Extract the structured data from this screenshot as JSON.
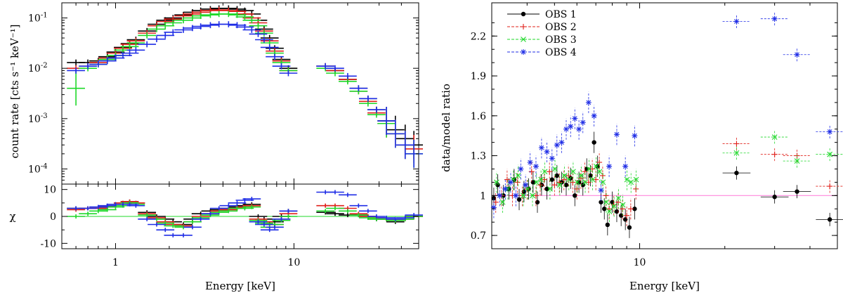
{
  "chart_data": [
    {
      "type": "scatter",
      "panel": "spectrum",
      "xlabel": "Energy [keV]",
      "ylabel": "count rate [cts s⁻¹ keV⁻¹]",
      "ylabel_lower": "χ",
      "xscale": "log",
      "yscale": "log",
      "xlim": [
        0.5,
        50
      ],
      "ylim": [
        5e-05,
        0.2
      ],
      "ylim_lower": [
        -12,
        12
      ],
      "xticks": [
        1,
        10
      ],
      "xtick_labels": [
        "1",
        "10"
      ],
      "yticks_upper": [
        0.0001,
        0.001,
        0.01,
        0.1
      ],
      "yticks_lower": [
        -10,
        0,
        10
      ],
      "ytick_labels_lower": [
        "-10",
        "0",
        "10"
      ],
      "grid": false,
      "series": [
        {
          "color": "#000000",
          "x": [
            0.6,
            0.7,
            0.8,
            0.9,
            1.0,
            1.1,
            1.2,
            1.3,
            1.5,
            1.7,
            1.9,
            2.1,
            2.4,
            2.7,
            3.0,
            3.4,
            3.8,
            4.3,
            4.8,
            5.3,
            5.8,
            6.3,
            6.8,
            7.3,
            7.8,
            8.5,
            9.3,
            15,
            17,
            20,
            23,
            26,
            29,
            33,
            37,
            42,
            47
          ],
          "y": [
            0.013,
            0.013,
            0.014,
            0.017,
            0.021,
            0.026,
            0.031,
            0.037,
            0.055,
            0.075,
            0.09,
            0.1,
            0.115,
            0.13,
            0.14,
            0.15,
            0.155,
            0.155,
            0.15,
            0.14,
            0.12,
            0.09,
            0.06,
            0.04,
            0.025,
            0.015,
            0.01,
            0.011,
            0.009,
            0.006,
            0.004,
            0.0025,
            0.0015,
            0.0009,
            0.0006,
            0.0004,
            0.0003
          ],
          "chi": [
            3,
            3,
            3,
            3.5,
            4.5,
            5,
            5.5,
            5,
            1.5,
            0,
            -1,
            -2,
            -3,
            -1,
            1,
            2,
            2.5,
            3,
            3.5,
            4,
            4.5,
            0,
            -1,
            -3,
            -2,
            0,
            2,
            1.5,
            1,
            0.5,
            0.5,
            0,
            -1,
            -1,
            -2,
            -1,
            0
          ]
        },
        {
          "color": "#e0201a",
          "x": [
            0.6,
            0.7,
            0.8,
            0.9,
            1.0,
            1.1,
            1.2,
            1.3,
            1.5,
            1.7,
            1.9,
            2.1,
            2.4,
            2.7,
            3.0,
            3.4,
            3.8,
            4.3,
            4.8,
            5.3,
            5.8,
            6.3,
            6.8,
            7.3,
            7.8,
            8.5,
            9.3,
            15,
            17,
            20,
            23,
            26,
            29,
            33,
            37,
            42,
            47
          ],
          "y": [
            0.01,
            0.011,
            0.013,
            0.016,
            0.02,
            0.025,
            0.03,
            0.035,
            0.05,
            0.07,
            0.085,
            0.095,
            0.11,
            0.12,
            0.13,
            0.14,
            0.145,
            0.14,
            0.135,
            0.12,
            0.1,
            0.08,
            0.055,
            0.035,
            0.022,
            0.014,
            0.009,
            0.011,
            0.009,
            0.006,
            0.0035,
            0.0022,
            0.0013,
            0.0008,
            0.0005,
            0.0003,
            0.00025
          ],
          "chi": [
            2.5,
            3,
            3,
            3.5,
            4,
            5,
            5.5,
            5,
            1,
            -0.5,
            -2,
            -3,
            -3.5,
            -2,
            0,
            1,
            2,
            2.5,
            3,
            3.5,
            4,
            -1,
            -2,
            -4,
            -3,
            -1,
            1,
            4,
            4,
            3,
            1,
            0,
            -0.5,
            -1,
            -1.5,
            -1,
            0
          ]
        },
        {
          "color": "#1fd82a",
          "x": [
            0.6,
            0.7,
            0.8,
            0.9,
            1.0,
            1.1,
            1.2,
            1.3,
            1.5,
            1.7,
            1.9,
            2.1,
            2.4,
            2.7,
            3.0,
            3.4,
            3.8,
            4.3,
            4.8,
            5.3,
            5.8,
            6.3,
            6.8,
            7.3,
            7.8,
            8.5,
            9.3,
            15,
            17,
            20,
            23,
            26,
            29,
            33,
            37,
            42,
            47
          ],
          "y": [
            0.004,
            0.01,
            0.012,
            0.015,
            0.018,
            0.023,
            0.027,
            0.032,
            0.045,
            0.06,
            0.07,
            0.08,
            0.09,
            0.1,
            0.11,
            0.115,
            0.12,
            0.12,
            0.115,
            0.105,
            0.09,
            0.07,
            0.05,
            0.032,
            0.02,
            0.013,
            0.009,
            0.01,
            0.008,
            0.0055,
            0.0035,
            0.002,
            0.0012,
            0.0008,
            0.0005,
            0.0003,
            0.0002
          ],
          "chi": [
            0,
            1,
            2,
            2.5,
            3.5,
            4,
            5,
            4.5,
            0.5,
            -1,
            -2.5,
            -3.5,
            -4,
            -2,
            -0.5,
            0.5,
            1.5,
            2,
            3,
            3,
            3.5,
            -1.5,
            -2.5,
            -4,
            -3,
            -1.5,
            0,
            2,
            3,
            2,
            0.5,
            -0.5,
            -1,
            -1,
            -1.5,
            -1,
            0
          ]
        },
        {
          "color": "#1f2de6",
          "x": [
            0.6,
            0.7,
            0.8,
            0.9,
            1.0,
            1.1,
            1.2,
            1.3,
            1.5,
            1.7,
            1.9,
            2.1,
            2.4,
            2.7,
            3.0,
            3.4,
            3.8,
            4.3,
            4.8,
            5.3,
            5.8,
            6.3,
            6.8,
            7.3,
            7.8,
            8.5,
            9.3,
            15,
            17,
            20,
            23,
            26,
            29,
            33,
            37,
            42,
            47
          ],
          "y": [
            0.009,
            0.011,
            0.012,
            0.014,
            0.016,
            0.018,
            0.02,
            0.023,
            0.03,
            0.038,
            0.045,
            0.052,
            0.058,
            0.063,
            0.068,
            0.072,
            0.075,
            0.075,
            0.072,
            0.066,
            0.058,
            0.048,
            0.037,
            0.026,
            0.017,
            0.011,
            0.008,
            0.011,
            0.01,
            0.007,
            0.004,
            0.0025,
            0.0015,
            0.0009,
            0.0005,
            0.0003,
            0.0002
          ],
          "chi": [
            3,
            3,
            3.5,
            4,
            4.5,
            4.5,
            4.5,
            4,
            -1,
            -3,
            -5,
            -7,
            -7,
            -4,
            -1,
            1,
            3,
            4,
            5,
            6,
            6.5,
            -2,
            -3,
            -5,
            -4,
            -1,
            2,
            9,
            9,
            8,
            4,
            2,
            0,
            -0.5,
            -1,
            -0.5,
            0.5
          ]
        }
      ]
    },
    {
      "type": "scatter",
      "panel": "ratio",
      "xlabel": "Energy [keV]",
      "ylabel": "data/model ratio",
      "xscale": "log",
      "xlim": [
        3,
        50
      ],
      "ylim": [
        0.6,
        2.45
      ],
      "xticks": [
        10
      ],
      "xtick_labels": [
        "10"
      ],
      "yticks": [
        0.7,
        1,
        1.3,
        1.6,
        1.9,
        2.2
      ],
      "ytick_labels": [
        "0.7",
        "1",
        "1.3",
        "1.6",
        "1.9",
        "2.2"
      ],
      "reference_line": 1,
      "reference_color": "#ff88dd",
      "legend_position": "top-left",
      "grid": false,
      "series": [
        {
          "name": "OBS 1",
          "color": "#000000",
          "marker": "dot",
          "x": [
            3.05,
            3.15,
            3.3,
            3.45,
            3.6,
            3.75,
            3.9,
            4.05,
            4.2,
            4.35,
            4.5,
            4.7,
            4.9,
            5.1,
            5.3,
            5.5,
            5.7,
            5.9,
            6.1,
            6.3,
            6.5,
            6.7,
            6.9,
            7.1,
            7.3,
            7.5,
            7.7,
            8.0,
            8.3,
            8.6,
            8.9,
            9.2,
            9.6,
            22,
            30,
            36,
            47
          ],
          "y": [
            0.98,
            1.08,
            1.0,
            1.05,
            1.12,
            0.97,
            1.03,
            1.05,
            1.1,
            0.95,
            1.08,
            1.05,
            1.12,
            1.15,
            1.1,
            1.08,
            1.13,
            1.0,
            1.1,
            1.08,
            1.2,
            1.15,
            1.4,
            1.22,
            0.95,
            0.9,
            0.78,
            0.95,
            0.88,
            0.85,
            0.82,
            0.76,
            0.9,
            1.17,
            0.99,
            1.03,
            0.82
          ]
        },
        {
          "name": "OBS 2",
          "color": "#e0201a",
          "marker": "plus",
          "x": [
            3.1,
            3.25,
            3.4,
            3.55,
            3.7,
            3.85,
            4.0,
            4.15,
            4.3,
            4.45,
            4.6,
            4.8,
            5.0,
            5.2,
            5.4,
            5.6,
            5.8,
            6.0,
            6.2,
            6.4,
            6.6,
            6.8,
            7.0,
            7.2,
            7.4,
            7.6,
            7.8,
            8.1,
            8.4,
            8.7,
            9.0,
            9.3,
            9.7,
            22,
            30,
            36,
            47
          ],
          "y": [
            0.95,
            1.0,
            1.12,
            1.0,
            1.1,
            1.0,
            1.05,
            1.18,
            1.0,
            1.08,
            1.12,
            1.18,
            1.08,
            1.1,
            1.12,
            1.15,
            1.1,
            1.05,
            1.13,
            1.18,
            1.1,
            1.2,
            1.12,
            1.25,
            1.15,
            1.0,
            0.9,
            0.93,
            0.95,
            0.9,
            0.85,
            0.9,
            1.05,
            1.39,
            1.31,
            1.3,
            1.07
          ]
        },
        {
          "name": "OBS 3",
          "color": "#1fd82a",
          "marker": "cross",
          "x": [
            3.12,
            3.28,
            3.42,
            3.58,
            3.72,
            3.88,
            4.02,
            4.18,
            4.32,
            4.48,
            4.62,
            4.82,
            5.02,
            5.22,
            5.42,
            5.62,
            5.82,
            6.02,
            6.22,
            6.42,
            6.62,
            6.82,
            7.02,
            7.22,
            7.42,
            7.62,
            7.82,
            8.12,
            8.42,
            8.72,
            9.02,
            9.32,
            9.72,
            22,
            30,
            36,
            47
          ],
          "y": [
            1.1,
            0.95,
            1.05,
            1.12,
            1.15,
            1.0,
            1.05,
            1.0,
            1.1,
            1.12,
            1.18,
            1.05,
            1.2,
            1.08,
            1.15,
            1.12,
            1.18,
            1.1,
            1.15,
            1.1,
            1.2,
            1.12,
            1.22,
            1.18,
            1.1,
            0.95,
            0.88,
            0.92,
            0.98,
            0.93,
            1.12,
            1.1,
            1.12,
            1.32,
            1.44,
            1.26,
            1.31
          ]
        },
        {
          "name": "OBS 4",
          "color": "#1f2de6",
          "marker": "star",
          "x": [
            3.05,
            3.2,
            3.35,
            3.5,
            3.65,
            3.8,
            3.95,
            4.1,
            4.3,
            4.5,
            4.7,
            4.9,
            5.1,
            5.3,
            5.5,
            5.7,
            5.9,
            6.1,
            6.3,
            6.6,
            6.9,
            7.3,
            7.8,
            8.3,
            8.9,
            9.6,
            22,
            30,
            36,
            47
          ],
          "y": [
            0.91,
            1.0,
            1.05,
            1.1,
            1.0,
            1.2,
            1.08,
            1.25,
            1.22,
            1.36,
            1.33,
            1.28,
            1.38,
            1.4,
            1.5,
            1.52,
            1.58,
            1.5,
            1.55,
            1.7,
            1.6,
            1.04,
            1.22,
            1.46,
            1.22,
            1.45,
            2.31,
            2.33,
            2.06,
            1.48
          ]
        }
      ]
    }
  ]
}
